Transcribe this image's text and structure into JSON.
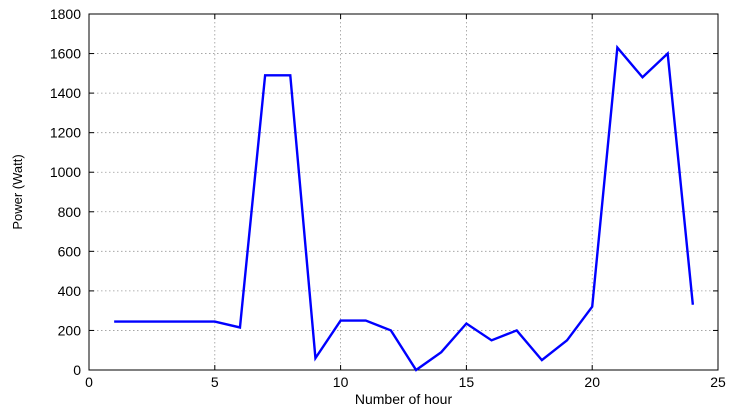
{
  "chart_data": {
    "type": "line",
    "title": "",
    "xlabel": "Number of hour",
    "ylabel": "Power (Watt)",
    "xlim": [
      0,
      25
    ],
    "ylim": [
      0,
      1800
    ],
    "xticks": [
      0,
      5,
      10,
      15,
      20,
      25
    ],
    "yticks": [
      0,
      200,
      400,
      600,
      800,
      1000,
      1200,
      1400,
      1600,
      1800
    ],
    "grid": true,
    "line_color": "#0000ff",
    "series": [
      {
        "x": [
          1,
          2,
          3,
          4,
          5,
          6,
          7,
          8,
          9,
          10,
          11,
          12,
          13,
          14,
          15,
          16,
          17,
          18,
          19,
          20,
          21,
          22,
          23,
          24
        ],
        "values": [
          245,
          245,
          245,
          245,
          245,
          215,
          1490,
          1490,
          60,
          250,
          250,
          200,
          0,
          90,
          235,
          150,
          200,
          50,
          150,
          320,
          1630,
          1480,
          1600,
          330
        ]
      }
    ]
  }
}
